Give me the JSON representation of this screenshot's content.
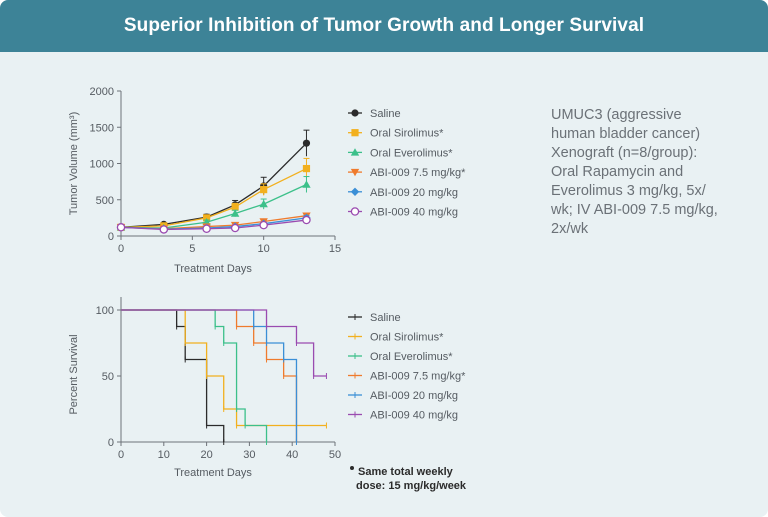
{
  "header": {
    "title": "Superior Inhibition of Tumor Growth and Longer Survival"
  },
  "description": "UMUC3 (aggressive\nhuman bladder cancer)\nXenograft (n=8/group):\nOral Rapamycin and\nEverolimus 3 mg/kg, 5x/\nwk; IV ABI-009 7.5 mg/kg,\n2x/wk",
  "footnote": {
    "line1": "Same total weekly",
    "line2": "dose: 15 mg/kg/week"
  },
  "colors": {
    "header_bg": "#3d8397",
    "saline": "#2b2b2b",
    "oral_sirolimus": "#f2b01e",
    "oral_everolimus": "#3cc08a",
    "abi_7_5": "#ef7b2d",
    "abi_20": "#3b8fd6",
    "abi_40": "#9a4bb0"
  },
  "chart_data": [
    {
      "type": "line",
      "xlabel": "Treatment Days",
      "ylabel": "Tumor Volume (mm³)",
      "xlim": [
        0,
        15
      ],
      "ylim": [
        0,
        2000
      ],
      "xticks": [
        0,
        5,
        10,
        15
      ],
      "yticks": [
        0,
        500,
        1000,
        1500,
        2000
      ],
      "legend_position": "right",
      "x": [
        0,
        3,
        6,
        8,
        10,
        13
      ],
      "series": [
        {
          "name": "Saline",
          "color": "#2b2b2b",
          "marker": "circle",
          "values": [
            120,
            160,
            260,
            430,
            690,
            1280
          ],
          "errors": [
            0,
            20,
            40,
            60,
            120,
            180
          ]
        },
        {
          "name": "Oral Sirolimus*",
          "color": "#f2b01e",
          "marker": "square",
          "values": [
            120,
            140,
            250,
            400,
            640,
            930
          ],
          "errors": [
            0,
            15,
            35,
            50,
            80,
            140
          ]
        },
        {
          "name": "Oral Everolimus*",
          "color": "#3cc08a",
          "marker": "triangle-up",
          "values": [
            120,
            110,
            190,
            310,
            440,
            710
          ],
          "errors": [
            0,
            12,
            30,
            45,
            70,
            110
          ]
        },
        {
          "name": "ABI-009 7.5 mg/kg*",
          "color": "#ef7b2d",
          "marker": "triangle-down",
          "values": [
            120,
            100,
            130,
            150,
            200,
            280
          ],
          "errors": [
            0,
            10,
            15,
            20,
            25,
            35
          ]
        },
        {
          "name": "ABI-009 20 mg/kg",
          "color": "#3b8fd6",
          "marker": "diamond",
          "values": [
            120,
            95,
            110,
            130,
            170,
            250
          ],
          "errors": [
            0,
            10,
            12,
            15,
            20,
            30
          ]
        },
        {
          "name": "ABI-009 40 mg/kg",
          "color": "#9a4bb0",
          "marker": "open-circle",
          "values": [
            120,
            90,
            100,
            110,
            150,
            220
          ],
          "errors": [
            0,
            10,
            12,
            15,
            20,
            25
          ]
        }
      ]
    },
    {
      "type": "line",
      "subtype": "kaplan-meier",
      "xlabel": "Treatment Days",
      "ylabel": "Percent Survival",
      "xlim": [
        0,
        50
      ],
      "ylim": [
        0,
        100
      ],
      "xticks": [
        0,
        10,
        20,
        30,
        40,
        50
      ],
      "yticks": [
        0,
        50,
        100
      ],
      "legend_position": "right",
      "series": [
        {
          "name": "Saline",
          "color": "#2b2b2b",
          "steps": [
            [
              0,
              100
            ],
            [
              13,
              87.5
            ],
            [
              15,
              62.5
            ],
            [
              20,
              12.5
            ],
            [
              24,
              0
            ]
          ]
        },
        {
          "name": "Oral Sirolimus*",
          "color": "#f2b01e",
          "steps": [
            [
              0,
              100
            ],
            [
              15,
              75
            ],
            [
              20,
              50
            ],
            [
              24,
              25
            ],
            [
              27,
              12.5
            ],
            [
              48,
              12.5
            ]
          ]
        },
        {
          "name": "Oral Everolimus*",
          "color": "#3cc08a",
          "steps": [
            [
              0,
              100
            ],
            [
              22,
              87.5
            ],
            [
              24,
              75
            ],
            [
              27,
              25
            ],
            [
              29,
              12.5
            ],
            [
              34,
              0
            ]
          ]
        },
        {
          "name": "ABI-009 7.5 mg/kg*",
          "color": "#ef7b2d",
          "steps": [
            [
              0,
              100
            ],
            [
              27,
              87.5
            ],
            [
              31,
              75
            ],
            [
              34,
              62.5
            ],
            [
              38,
              50
            ],
            [
              41,
              0
            ]
          ]
        },
        {
          "name": "ABI-009 20 mg/kg",
          "color": "#3b8fd6",
          "steps": [
            [
              0,
              100
            ],
            [
              31,
              87.5
            ],
            [
              34,
              75
            ],
            [
              38,
              62.5
            ],
            [
              41,
              0
            ]
          ]
        },
        {
          "name": "ABI-009 40 mg/kg",
          "color": "#9a4bb0",
          "steps": [
            [
              0,
              100
            ],
            [
              34,
              87.5
            ],
            [
              41,
              75
            ],
            [
              45,
              50
            ],
            [
              48,
              50
            ]
          ]
        }
      ]
    }
  ]
}
